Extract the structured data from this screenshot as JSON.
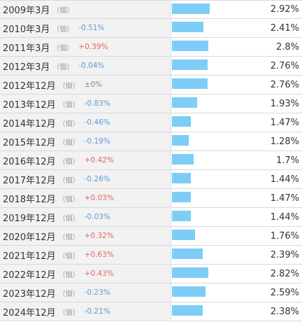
{
  "unit_label": "（個）",
  "colors": {
    "bar": "#7dcdf7",
    "negative_change": "#5b9bd5",
    "positive_change": "#e06666",
    "label_bg": "#f2f2f2"
  },
  "scale_max_percent": 2.92,
  "rows": [
    {
      "date": "2009年3月",
      "change": "",
      "change_dir": "none",
      "value": "2.92%",
      "percent": 2.92
    },
    {
      "date": "2010年3月",
      "change": "-0.51%",
      "change_dir": "down",
      "value": "2.41%",
      "percent": 2.41
    },
    {
      "date": "2011年3月",
      "change": "+0.39%",
      "change_dir": "up",
      "value": "2.8%",
      "percent": 2.8
    },
    {
      "date": "2012年3月",
      "change": "-0.04%",
      "change_dir": "down",
      "value": "2.76%",
      "percent": 2.76
    },
    {
      "date": "2012年12月",
      "change": "±0%",
      "change_dir": "flat",
      "value": "2.76%",
      "percent": 2.76
    },
    {
      "date": "2013年12月",
      "change": "-0.83%",
      "change_dir": "down",
      "value": "1.93%",
      "percent": 1.93
    },
    {
      "date": "2014年12月",
      "change": "-0.46%",
      "change_dir": "down",
      "value": "1.47%",
      "percent": 1.47
    },
    {
      "date": "2015年12月",
      "change": "-0.19%",
      "change_dir": "down",
      "value": "1.28%",
      "percent": 1.28
    },
    {
      "date": "2016年12月",
      "change": "+0.42%",
      "change_dir": "up",
      "value": "1.7%",
      "percent": 1.7
    },
    {
      "date": "2017年12月",
      "change": "-0.26%",
      "change_dir": "down",
      "value": "1.44%",
      "percent": 1.44
    },
    {
      "date": "2018年12月",
      "change": "+0.03%",
      "change_dir": "up",
      "value": "1.47%",
      "percent": 1.47
    },
    {
      "date": "2019年12月",
      "change": "-0.03%",
      "change_dir": "down",
      "value": "1.44%",
      "percent": 1.44
    },
    {
      "date": "2020年12月",
      "change": "+0.32%",
      "change_dir": "up",
      "value": "1.76%",
      "percent": 1.76
    },
    {
      "date": "2021年12月",
      "change": "+0.63%",
      "change_dir": "up",
      "value": "2.39%",
      "percent": 2.39
    },
    {
      "date": "2022年12月",
      "change": "+0.43%",
      "change_dir": "up",
      "value": "2.82%",
      "percent": 2.82
    },
    {
      "date": "2023年12月",
      "change": "-0.23%",
      "change_dir": "down",
      "value": "2.59%",
      "percent": 2.59
    },
    {
      "date": "2024年12月",
      "change": "-0.21%",
      "change_dir": "down",
      "value": "2.38%",
      "percent": 2.38
    }
  ]
}
